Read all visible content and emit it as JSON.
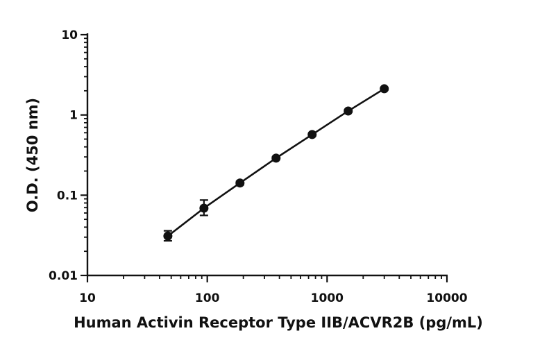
{
  "chart_data": {
    "type": "scatter",
    "xlabel": "Human Activin Receptor Type IIB/ACVR2B (pg/mL)",
    "ylabel": "O.D. (450 nm)",
    "xscale": "log",
    "yscale": "log",
    "xlim": [
      10,
      10000
    ],
    "ylim": [
      0.01,
      10
    ],
    "xticks": [
      "10",
      "100",
      "1000",
      "10000"
    ],
    "yticks": [
      "0.01",
      "0.1",
      "1",
      "10"
    ],
    "grid": false,
    "legend": "none",
    "fit_line": true,
    "series": [
      {
        "x": [
          46.9,
          93.8,
          187.5,
          375,
          750,
          1500,
          3000
        ],
        "y": [
          0.031,
          0.069,
          0.142,
          0.29,
          0.57,
          1.12,
          2.12
        ],
        "error_low": [
          0.027,
          0.056,
          0.135,
          0.28,
          0.55,
          1.08,
          2.05
        ],
        "error_high": [
          0.036,
          0.087,
          0.149,
          0.3,
          0.59,
          1.16,
          2.19
        ]
      }
    ],
    "color": "#111111"
  }
}
